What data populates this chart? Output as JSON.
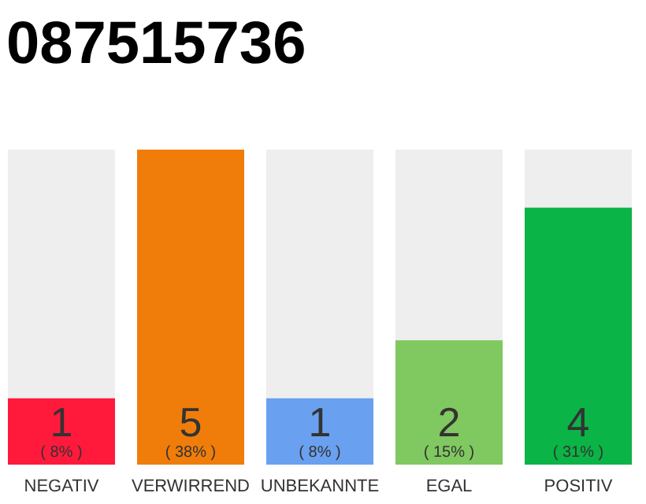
{
  "chart_data": {
    "type": "bar",
    "title": "087515736",
    "categories": [
      "NEGATIV",
      "VERWIRREND",
      "UNBEKANNTE",
      "EGAL",
      "POSITIV"
    ],
    "values": [
      8,
      38,
      8,
      15,
      31
    ],
    "colors": [
      "#ff1a3c",
      "#f07d0a",
      "#6aa0f0",
      "#80c860",
      "#0ab446"
    ],
    "value_labels": [
      "( 8% )",
      "( 38% )",
      "( 8% )",
      "( 15% )",
      "( 31% )"
    ],
    "annotations": [
      "1",
      "5",
      "1",
      "2",
      "4"
    ]
  }
}
